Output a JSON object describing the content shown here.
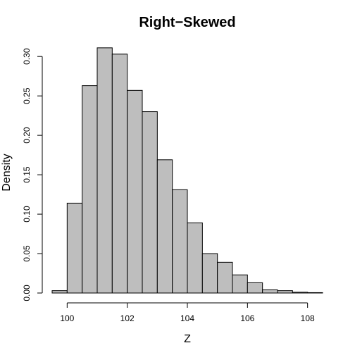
{
  "chart_data": {
    "type": "bar",
    "title": "Right−Skewed",
    "xlabel": "Z",
    "ylabel": "Density",
    "bin_edges": [
      99.5,
      100.0,
      100.5,
      101.0,
      101.5,
      102.0,
      102.5,
      103.0,
      103.5,
      104.0,
      104.5,
      105.0,
      105.5,
      106.0,
      106.5,
      107.0,
      107.5,
      108.0,
      108.5
    ],
    "values": [
      0.003,
      0.114,
      0.263,
      0.311,
      0.303,
      0.257,
      0.23,
      0.169,
      0.131,
      0.089,
      0.05,
      0.039,
      0.023,
      0.013,
      0.004,
      0.003,
      0.001,
      0.0005
    ],
    "xlim": [
      99.5,
      108.5
    ],
    "ylim": [
      0,
      0.31
    ],
    "x_ticks": [
      100,
      102,
      104,
      106,
      108
    ],
    "x_tick_labels": [
      "100",
      "102",
      "104",
      "106",
      "108"
    ],
    "y_ticks": [
      0.0,
      0.05,
      0.1,
      0.15,
      0.2,
      0.25,
      0.3
    ],
    "y_tick_labels": [
      "0.00",
      "0.05",
      "0.10",
      "0.15",
      "0.20",
      "0.25",
      "0.30"
    ],
    "bar_fill": "#bebebe",
    "bar_stroke": "#000000",
    "grid": false,
    "legend": "none"
  }
}
